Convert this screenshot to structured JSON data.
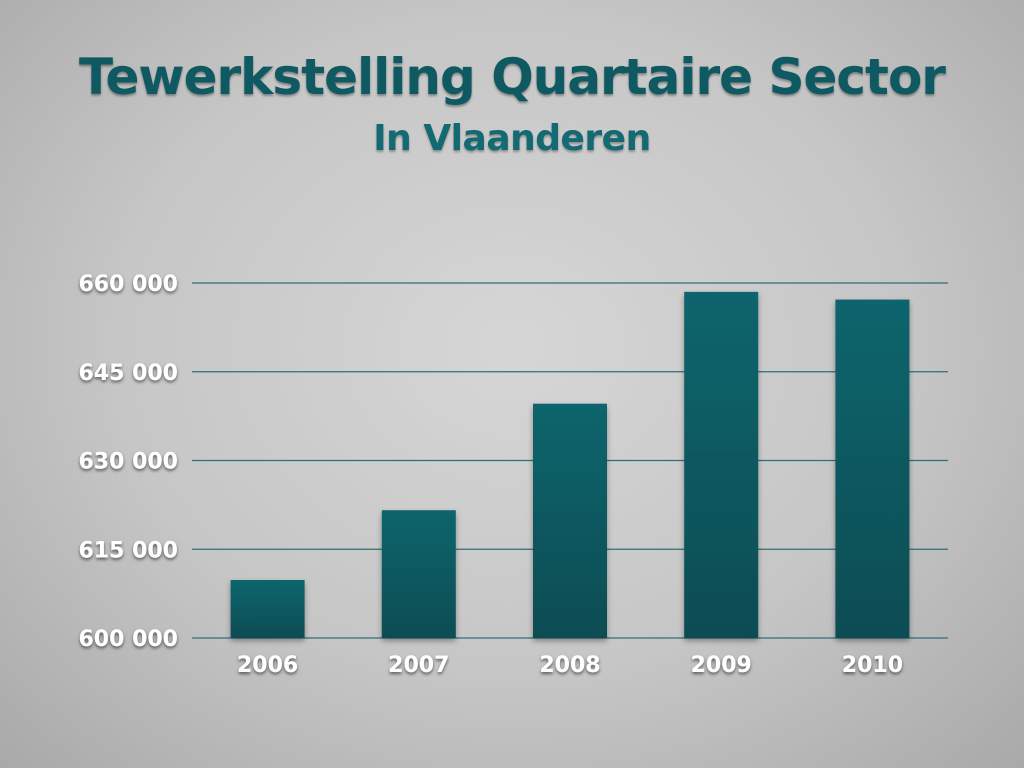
{
  "chart_data": {
    "type": "bar",
    "title": "Tewerkstelling Quartaire Sector",
    "subtitle": "In Vlaanderen",
    "xlabel": "",
    "ylabel": "",
    "categories": [
      "2006",
      "2007",
      "2008",
      "2009",
      "2010"
    ],
    "values": [
      609800,
      621600,
      639600,
      658500,
      657200
    ],
    "ylim": [
      600000,
      660000
    ],
    "y_ticks": [
      {
        "value": 600000,
        "label": "600 000"
      },
      {
        "value": 615000,
        "label": "615 000"
      },
      {
        "value": 630000,
        "label": "630 000"
      },
      {
        "value": 645000,
        "label": "645 000"
      },
      {
        "value": 660000,
        "label": "660 000"
      }
    ],
    "grid": true,
    "legend": "none",
    "colors": {
      "bar_top": "#10656d",
      "bar_bottom": "#0a4c53",
      "gridline": "#2f6f77",
      "title": "#0f5a62",
      "subtitle": "#136a72",
      "tick_text": "#ffffff"
    }
  }
}
